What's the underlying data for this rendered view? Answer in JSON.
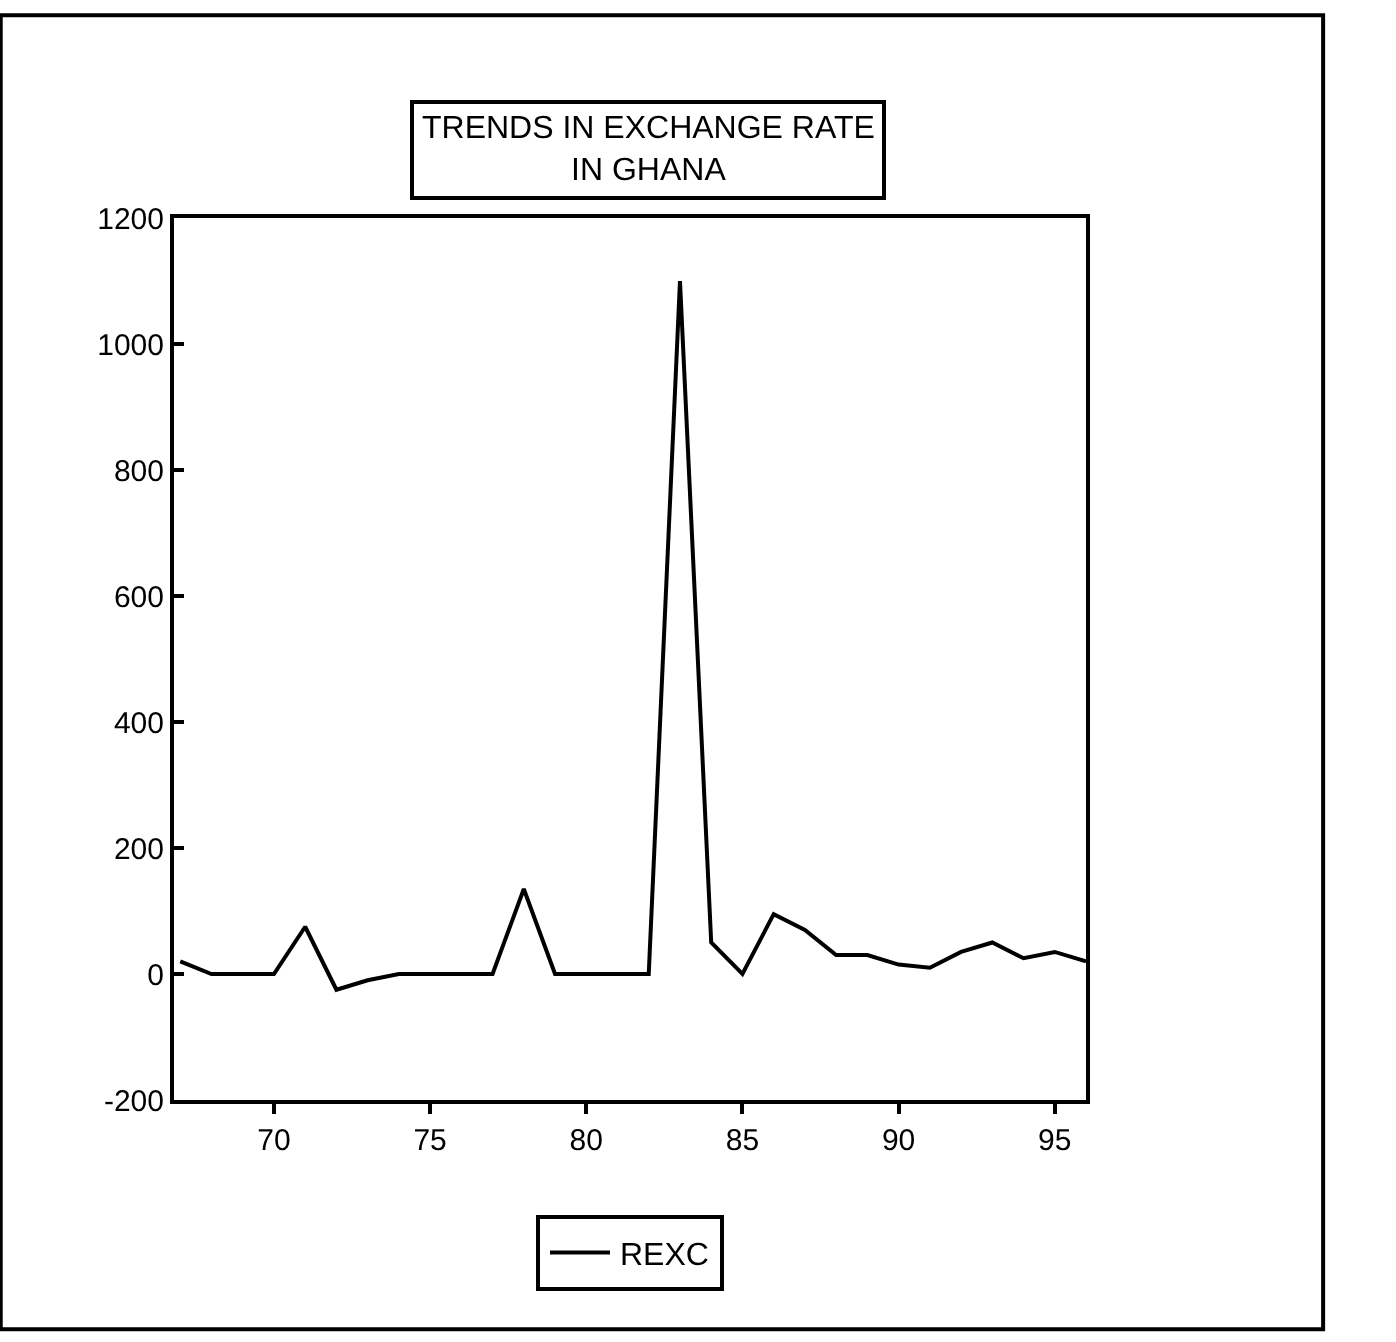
{
  "chart_data": {
    "type": "line",
    "title": "TRENDS IN EXCHANGE RATE\nIN GHANA",
    "x": [
      67,
      68,
      69,
      70,
      71,
      72,
      73,
      74,
      75,
      76,
      77,
      78,
      79,
      80,
      81,
      82,
      83,
      84,
      85,
      86,
      87,
      88,
      89,
      90,
      91,
      92,
      93,
      94,
      95,
      96
    ],
    "series": [
      {
        "name": "REXC",
        "color": "#000000",
        "values": [
          20,
          0,
          0,
          0,
          75,
          -25,
          -10,
          0,
          0,
          0,
          0,
          135,
          0,
          0,
          0,
          0,
          1100,
          50,
          0,
          95,
          70,
          30,
          30,
          15,
          10,
          35,
          50,
          25,
          35,
          20
        ]
      }
    ],
    "xlim": [
      66.8,
      96
    ],
    "xticks": [
      70,
      75,
      80,
      85,
      90,
      95
    ],
    "ylim": [
      -200,
      1200
    ],
    "yticks": [
      -200,
      0,
      200,
      400,
      600,
      800,
      1000,
      1200
    ],
    "legend": "bottom",
    "marker": "none",
    "line_style": "solid"
  }
}
